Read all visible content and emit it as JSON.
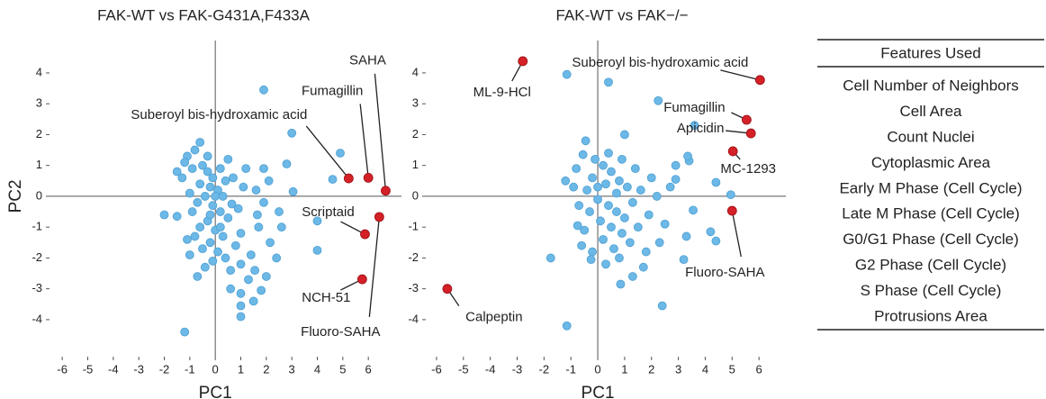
{
  "chart_data": [
    {
      "type": "scatter",
      "title": "FAK-WT vs FAK-G431A,F433A",
      "xlabel": "PC1",
      "ylabel": "PC2",
      "xlim": [
        -6.5,
        7.3
      ],
      "ylim": [
        -5.2,
        5.05
      ],
      "xticks": [
        -6,
        -5,
        -4,
        -3,
        -2,
        -1,
        0,
        1,
        2,
        3,
        4,
        5,
        6
      ],
      "yticks": [
        -4,
        -3,
        -2,
        -1,
        0,
        1,
        2,
        3,
        4
      ],
      "series": [
        {
          "color": "#6cb8e6",
          "x": [
            -0.5,
            -0.3,
            -0.1,
            0.2,
            0.4,
            -0.6,
            -0.2,
            0.1,
            0.3,
            -0.4,
            -0.7,
            -0.1,
            0.2,
            0.5,
            -0.3,
            -0.6,
            0.0,
            0.3,
            -0.2,
            -0.5,
            0.1,
            -0.1,
            0.4,
            -0.4,
            0.6,
            0.8,
            1.0,
            0.9,
            1.1,
            0.7,
            -0.9,
            -1.1,
            -0.8,
            -0.3,
            -1.0,
            -0.9,
            -1.3,
            -1.5,
            -1.2,
            -2.0,
            -1.0,
            -0.7,
            1.3,
            1.4,
            1.7,
            1.2,
            1.6,
            2.1,
            1.9,
            2.6,
            2.4,
            2.0,
            0.6,
            1.0,
            1.5,
            0.2,
            -0.8,
            0.5,
            -0.2,
            0.0,
            1.9,
            -1.2,
            3.0,
            2.8,
            4.9,
            4.6,
            4.0,
            4.0,
            1.9,
            1.0,
            1.0,
            1.0,
            1.8,
            1.55,
            -0.6,
            -1.5,
            -1.1,
            1.65,
            3.05,
            2.5,
            2.15,
            0.65
          ],
          "values": [
            1.0,
            0.8,
            0.6,
            0.9,
            0.5,
            0.4,
            0.3,
            0.2,
            0.0,
            0.0,
            -0.2,
            -0.3,
            -0.5,
            -0.7,
            -0.8,
            -1.0,
            -1.1,
            -1.3,
            -1.5,
            -1.7,
            -1.8,
            -2.1,
            -2.0,
            -2.3,
            -2.4,
            -1.6,
            -1.2,
            -0.4,
            0.3,
            0.6,
            0.9,
            1.3,
            1.5,
            1.3,
            0.1,
            -0.5,
            0.6,
            0.8,
            1.1,
            -0.6,
            -1.9,
            -2.6,
            -2.7,
            -1.9,
            -1.0,
            0.9,
            0.2,
            0.5,
            -0.2,
            -1.0,
            -2.0,
            -2.6,
            -3.0,
            -2.2,
            -3.4,
            -1.0,
            -1.3,
            1.2,
            -0.6,
            0.0,
            3.45,
            -4.4,
            2.05,
            1.05,
            1.4,
            0.55,
            -0.8,
            -1.75,
            0.9,
            -3.9,
            -3.55,
            -3.15,
            -3.05,
            -2.4,
            1.75,
            -0.65,
            -1.4,
            -0.6,
            0.15,
            -0.5,
            -1.5,
            -0.25
          ]
        },
        {
          "color": "#d42027",
          "x": [
            5.23,
            6.0,
            6.68,
            6.43,
            5.87,
            5.76
          ],
          "values": [
            0.58,
            0.6,
            0.18,
            -0.67,
            -1.23,
            -2.69
          ],
          "labels": [
            "Suberoyl bis-hydroxamic acid",
            "Fumagillin",
            "SAHA",
            "Fluoro-SAHA",
            "Scriptaid",
            "NCH-51"
          ]
        }
      ]
    },
    {
      "type": "scatter",
      "title": "FAK-WT vs FAK−/−",
      "xlabel": "PC1",
      "xlim": [
        -6.4,
        7.0
      ],
      "ylim": [
        -5.2,
        5.05
      ],
      "xticks": [
        -6,
        -5,
        -4,
        -3,
        -2,
        -1,
        0,
        1,
        2,
        3,
        4,
        5,
        6
      ],
      "yticks": [
        -4,
        -3,
        -2,
        -1,
        0,
        1,
        2,
        3,
        4
      ],
      "series": [
        {
          "color": "#6cb8e6",
          "x": [
            0.2,
            0.5,
            0.8,
            1.1,
            0.3,
            -0.2,
            -0.4,
            0.0,
            0.4,
            0.7,
            1.0,
            1.3,
            1.6,
            -0.3,
            0.1,
            0.5,
            0.9,
            -0.5,
            0.2,
            0.6,
            -0.2,
            0.3,
            1.2,
            1.5,
            1.9,
            2.2,
            2.0,
            1.4,
            0.9,
            0.4,
            -0.1,
            -0.8,
            -0.9,
            -0.7,
            -1.2,
            0.0,
            0.7,
            1.8,
            2.5,
            2.7,
            1.0,
            -0.6,
            0.8,
            1.3,
            2.3,
            -1.15,
            0.4,
            2.25,
            3.6,
            -1.15,
            -1.75,
            -0.25,
            0.85,
            2.4,
            1.7,
            3.2,
            3.3,
            4.2,
            4.4,
            3.55,
            4.95,
            4.4,
            2.9,
            3.4,
            2.9,
            3.35,
            -0.45,
            -0.55,
            -0.75
          ],
          "values": [
            1.0,
            0.8,
            0.5,
            0.3,
            0.4,
            0.6,
            0.2,
            -0.1,
            -0.3,
            -0.5,
            -0.7,
            -0.2,
            0.2,
            -0.5,
            -0.8,
            -1.0,
            -1.2,
            -1.1,
            -1.4,
            -1.7,
            -1.8,
            -2.2,
            -1.5,
            -1.0,
            -0.6,
            0.0,
            0.6,
            0.9,
            1.2,
            1.4,
            1.2,
            0.9,
            0.3,
            -0.3,
            0.5,
            0.3,
            0.1,
            -1.8,
            -0.9,
            0.3,
            2.0,
            -1.6,
            -2.0,
            -2.6,
            -1.5,
            3.95,
            3.7,
            3.1,
            2.3,
            -4.2,
            -2.0,
            -2.05,
            -2.85,
            -3.55,
            -2.3,
            -2.05,
            -1.3,
            -1.15,
            -1.45,
            -0.45,
            0.05,
            0.45,
            0.55,
            1.15,
            1.0,
            1.3,
            1.8,
            1.35,
            -0.95
          ]
        },
        {
          "color": "#d42027",
          "x": [
            -2.79,
            6.04,
            5.54,
            5.7,
            5.03,
            5.0,
            -5.6
          ],
          "values": [
            4.38,
            3.77,
            2.48,
            2.04,
            1.46,
            -0.47,
            -3.0
          ],
          "labels": [
            "ML-9-HCl",
            "Suberoyl bis-hydroxamic acid",
            "Fumagillin",
            "Apicidin",
            "MC-1293",
            "Fluoro-SAHA",
            "Calpeptin"
          ]
        }
      ]
    }
  ],
  "table": {
    "header": "Features Used",
    "rows": [
      "Cell Number of Neighbors",
      "Cell Area",
      "Count Nuclei",
      "Cytoplasmic Area",
      "Early M Phase (Cell Cycle)",
      "Late M Phase (Cell Cycle)",
      "G0/G1 Phase (Cell Cycle)",
      "G2 Phase (Cell Cycle)",
      "S Phase (Cell Cycle)",
      "Protrusions Area"
    ]
  }
}
